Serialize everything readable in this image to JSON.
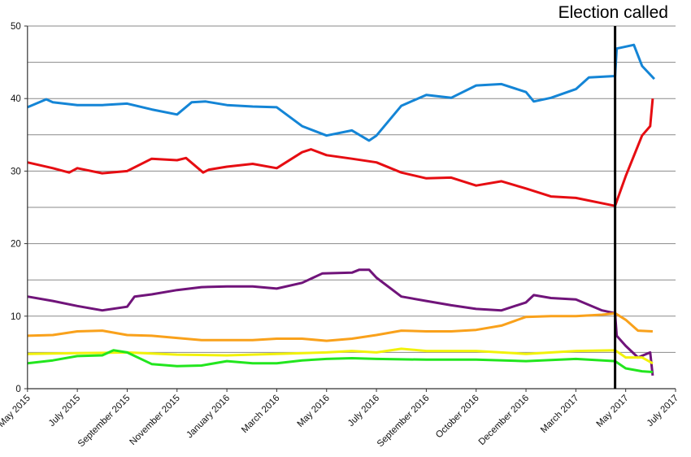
{
  "chart_data": {
    "type": "line",
    "title": "",
    "xlabel": "",
    "ylabel": "",
    "ylim": [
      0,
      50
    ],
    "y_ticks": [
      "0",
      "10",
      "20",
      "30",
      "40",
      "50"
    ],
    "gridlines_every": 5,
    "grid": true,
    "x_tick_labels": [
      "May 2015",
      "July 2015",
      "September 2015",
      "November 2015",
      "January 2016",
      "March 2016",
      "May 2016",
      "July 2016",
      "September 2016",
      "October 2016",
      "December 2016",
      "March 2017",
      "May 2017",
      "July 2017"
    ],
    "x_tick_dates": [
      "2015-05-01",
      "2015-07-01",
      "2015-09-01",
      "2015-11-01",
      "2016-01-01",
      "2016-03-01",
      "2016-05-01",
      "2016-07-01",
      "2016-09-01",
      "2016-10-01",
      "2016-12-01",
      "2017-03-01",
      "2017-05-01",
      "2017-07-01"
    ],
    "annotation": {
      "label": "Election called",
      "date": "2017-04-18",
      "color": "#000000"
    },
    "series": [
      {
        "color": "#1485d6",
        "points": [
          [
            "2015-05-01",
            38.8
          ],
          [
            "2015-05-24",
            39.9
          ],
          [
            "2015-06-01",
            39.5
          ],
          [
            "2015-07-01",
            39.1
          ],
          [
            "2015-08-01",
            39.1
          ],
          [
            "2015-09-01",
            39.3
          ],
          [
            "2015-10-01",
            38.5
          ],
          [
            "2015-11-01",
            37.8
          ],
          [
            "2015-11-19",
            39.5
          ],
          [
            "2015-12-06",
            39.6
          ],
          [
            "2016-01-01",
            39.1
          ],
          [
            "2016-02-01",
            38.9
          ],
          [
            "2016-03-01",
            38.8
          ],
          [
            "2016-04-01",
            36.2
          ],
          [
            "2016-05-01",
            34.9
          ],
          [
            "2016-06-01",
            35.6
          ],
          [
            "2016-06-22",
            34.2
          ],
          [
            "2016-07-01",
            34.9
          ],
          [
            "2016-08-01",
            39.0
          ],
          [
            "2016-09-01",
            40.5
          ],
          [
            "2016-09-16",
            40.1
          ],
          [
            "2016-10-01",
            41.8
          ],
          [
            "2016-11-01",
            42.0
          ],
          [
            "2016-12-01",
            40.9
          ],
          [
            "2016-12-15",
            39.6
          ],
          [
            "2017-01-15",
            40.1
          ],
          [
            "2017-03-01",
            41.3
          ],
          [
            "2017-03-17",
            42.9
          ],
          [
            "2017-04-18",
            43.1
          ],
          [
            "2017-04-20",
            46.9
          ],
          [
            "2017-05-11",
            47.4
          ],
          [
            "2017-05-21",
            44.5
          ],
          [
            "2017-06-05",
            42.7
          ]
        ]
      },
      {
        "color": "#e60d12",
        "points": [
          [
            "2015-05-01",
            31.2
          ],
          [
            "2015-06-01",
            30.4
          ],
          [
            "2015-06-21",
            29.8
          ],
          [
            "2015-07-01",
            30.4
          ],
          [
            "2015-08-01",
            29.7
          ],
          [
            "2015-09-01",
            30.0
          ],
          [
            "2015-10-01",
            31.7
          ],
          [
            "2015-11-01",
            31.5
          ],
          [
            "2015-11-12",
            31.8
          ],
          [
            "2015-12-03",
            29.8
          ],
          [
            "2015-12-10",
            30.2
          ],
          [
            "2016-01-01",
            30.6
          ],
          [
            "2016-02-01",
            31.0
          ],
          [
            "2016-03-01",
            30.4
          ],
          [
            "2016-04-01",
            32.6
          ],
          [
            "2016-04-12",
            33.0
          ],
          [
            "2016-05-01",
            32.2
          ],
          [
            "2016-06-01",
            31.7
          ],
          [
            "2016-07-01",
            31.2
          ],
          [
            "2016-08-01",
            29.8
          ],
          [
            "2016-09-01",
            29.0
          ],
          [
            "2016-09-16",
            29.1
          ],
          [
            "2016-10-01",
            28.0
          ],
          [
            "2016-11-01",
            28.6
          ],
          [
            "2016-12-01",
            27.6
          ],
          [
            "2017-01-15",
            26.5
          ],
          [
            "2017-03-01",
            26.3
          ],
          [
            "2017-04-18",
            25.2
          ],
          [
            "2017-05-01",
            29.3
          ],
          [
            "2017-05-21",
            34.9
          ],
          [
            "2017-05-31",
            36.2
          ],
          [
            "2017-06-03",
            40.0
          ]
        ]
      },
      {
        "color": "#70147a",
        "points": [
          [
            "2015-05-01",
            12.7
          ],
          [
            "2015-06-01",
            12.1
          ],
          [
            "2015-07-01",
            11.4
          ],
          [
            "2015-08-01",
            10.8
          ],
          [
            "2015-09-01",
            11.3
          ],
          [
            "2015-09-10",
            12.7
          ],
          [
            "2015-10-01",
            13.0
          ],
          [
            "2015-11-01",
            13.6
          ],
          [
            "2015-12-01",
            14.0
          ],
          [
            "2016-01-01",
            14.1
          ],
          [
            "2016-02-01",
            14.1
          ],
          [
            "2016-03-01",
            13.8
          ],
          [
            "2016-04-01",
            14.6
          ],
          [
            "2016-04-26",
            15.9
          ],
          [
            "2016-06-01",
            16.0
          ],
          [
            "2016-06-10",
            16.4
          ],
          [
            "2016-06-22",
            16.4
          ],
          [
            "2016-07-01",
            15.3
          ],
          [
            "2016-08-01",
            12.7
          ],
          [
            "2016-09-01",
            12.1
          ],
          [
            "2016-09-16",
            11.5
          ],
          [
            "2016-10-01",
            11.0
          ],
          [
            "2016-11-01",
            10.8
          ],
          [
            "2016-12-01",
            11.9
          ],
          [
            "2016-12-15",
            12.9
          ],
          [
            "2017-01-15",
            12.5
          ],
          [
            "2017-03-01",
            12.3
          ],
          [
            "2017-04-02",
            10.8
          ],
          [
            "2017-04-18",
            10.4
          ],
          [
            "2017-04-20",
            7.3
          ],
          [
            "2017-05-01",
            5.9
          ],
          [
            "2017-05-16",
            4.3
          ],
          [
            "2017-05-31",
            5.0
          ],
          [
            "2017-06-03",
            1.8
          ]
        ]
      },
      {
        "color": "#f9a11b",
        "points": [
          [
            "2015-05-01",
            7.3
          ],
          [
            "2015-06-01",
            7.4
          ],
          [
            "2015-07-01",
            7.9
          ],
          [
            "2015-08-01",
            8.0
          ],
          [
            "2015-09-01",
            7.4
          ],
          [
            "2015-10-01",
            7.3
          ],
          [
            "2015-11-01",
            7.0
          ],
          [
            "2015-12-01",
            6.7
          ],
          [
            "2016-01-01",
            6.7
          ],
          [
            "2016-02-01",
            6.7
          ],
          [
            "2016-03-01",
            6.9
          ],
          [
            "2016-04-01",
            6.9
          ],
          [
            "2016-05-01",
            6.6
          ],
          [
            "2016-06-01",
            6.9
          ],
          [
            "2016-07-01",
            7.4
          ],
          [
            "2016-08-01",
            8.0
          ],
          [
            "2016-09-01",
            7.9
          ],
          [
            "2016-09-16",
            7.9
          ],
          [
            "2016-10-01",
            8.1
          ],
          [
            "2016-11-01",
            8.7
          ],
          [
            "2016-12-01",
            9.9
          ],
          [
            "2017-01-15",
            10.0
          ],
          [
            "2017-03-01",
            10.0
          ],
          [
            "2017-04-02",
            10.2
          ],
          [
            "2017-04-18",
            10.4
          ],
          [
            "2017-05-01",
            9.5
          ],
          [
            "2017-05-16",
            8.0
          ],
          [
            "2017-06-03",
            7.9
          ]
        ]
      },
      {
        "color": "#f2f20a",
        "points": [
          [
            "2015-05-01",
            4.8
          ],
          [
            "2015-07-01",
            4.9
          ],
          [
            "2015-09-01",
            5.0
          ],
          [
            "2015-11-01",
            4.7
          ],
          [
            "2016-01-01",
            4.6
          ],
          [
            "2016-03-01",
            4.8
          ],
          [
            "2016-05-01",
            5.0
          ],
          [
            "2016-06-01",
            5.2
          ],
          [
            "2016-07-01",
            5.0
          ],
          [
            "2016-08-01",
            5.5
          ],
          [
            "2016-09-01",
            5.2
          ],
          [
            "2016-10-01",
            5.2
          ],
          [
            "2016-12-01",
            4.8
          ],
          [
            "2017-03-01",
            5.2
          ],
          [
            "2017-04-18",
            5.3
          ],
          [
            "2017-05-01",
            4.3
          ],
          [
            "2017-05-21",
            4.3
          ],
          [
            "2017-06-03",
            3.5
          ]
        ]
      },
      {
        "color": "#22e61e",
        "points": [
          [
            "2015-05-01",
            3.5
          ],
          [
            "2015-06-01",
            3.9
          ],
          [
            "2015-07-01",
            4.5
          ],
          [
            "2015-08-01",
            4.6
          ],
          [
            "2015-08-15",
            5.3
          ],
          [
            "2015-09-01",
            5.0
          ],
          [
            "2015-10-01",
            3.4
          ],
          [
            "2015-11-01",
            3.1
          ],
          [
            "2015-12-01",
            3.2
          ],
          [
            "2016-01-01",
            3.8
          ],
          [
            "2016-02-01",
            3.5
          ],
          [
            "2016-03-01",
            3.5
          ],
          [
            "2016-04-01",
            3.9
          ],
          [
            "2016-05-01",
            4.1
          ],
          [
            "2016-06-01",
            4.2
          ],
          [
            "2016-07-01",
            4.1
          ],
          [
            "2016-09-01",
            4.0
          ],
          [
            "2016-10-01",
            4.0
          ],
          [
            "2016-12-01",
            3.8
          ],
          [
            "2017-03-01",
            4.1
          ],
          [
            "2017-04-18",
            3.8
          ],
          [
            "2017-05-01",
            2.8
          ],
          [
            "2017-05-21",
            2.4
          ],
          [
            "2017-06-03",
            2.3
          ]
        ]
      }
    ]
  }
}
